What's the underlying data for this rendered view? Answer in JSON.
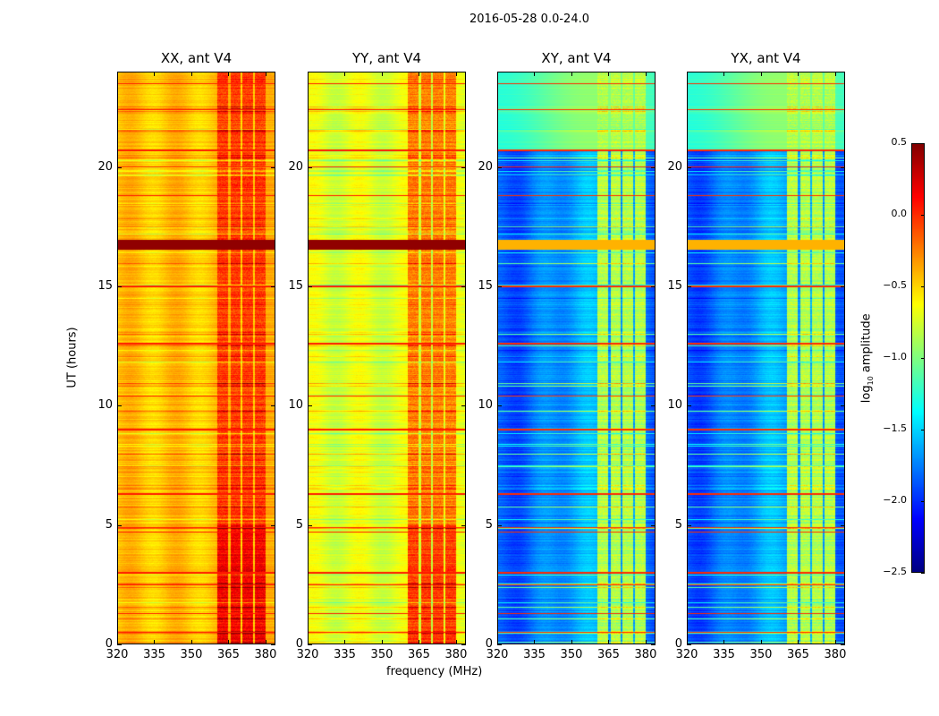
{
  "chart_data": {
    "type": "heatmap",
    "title": "2016-05-28 0.0-24.0",
    "xlabel": "frequency (MHz)",
    "ylabel": "UT (hours)",
    "xlim": [
      320,
      384
    ],
    "ylim": [
      0,
      24
    ],
    "xticks": [
      "320",
      "335",
      "350",
      "365",
      "380"
    ],
    "yticks": [
      "0",
      "5",
      "10",
      "15",
      "20"
    ],
    "rfi_band_segments_mhz": [
      [
        360.5,
        365
      ],
      [
        366,
        370
      ],
      [
        370.7,
        375
      ],
      [
        375.7,
        380
      ]
    ],
    "flagged_hours": [
      0.5,
      1.3,
      2.5,
      3.0,
      4.7,
      4.9,
      6.3,
      9.0,
      10.4,
      12.6,
      15.0,
      16.7,
      16.8,
      18.8,
      20.0,
      20.7,
      22.4,
      23.5
    ],
    "panels": [
      {
        "title": "XX, ant V4",
        "base_level": -0.45,
        "band_level": -0.05
      },
      {
        "title": "YY, ant V4",
        "base_level": -0.72,
        "band_level": -0.25
      },
      {
        "title": "XY, ant V4",
        "base_level": -1.75,
        "band_level": -0.85
      },
      {
        "title": "YX, ant V4",
        "base_level": -1.75,
        "band_level": -0.85
      }
    ],
    "colorbar": {
      "label": "log10 amplitude",
      "label_main": "log",
      "label_sub": "10",
      "label_rest": " amplitude",
      "range": [
        -2.5,
        0.5
      ],
      "ticks": [
        "0.5",
        "0.0",
        "−0.5",
        "−1.0",
        "−1.5",
        "−2.0",
        "−2.5"
      ],
      "colormap": "jet"
    }
  }
}
